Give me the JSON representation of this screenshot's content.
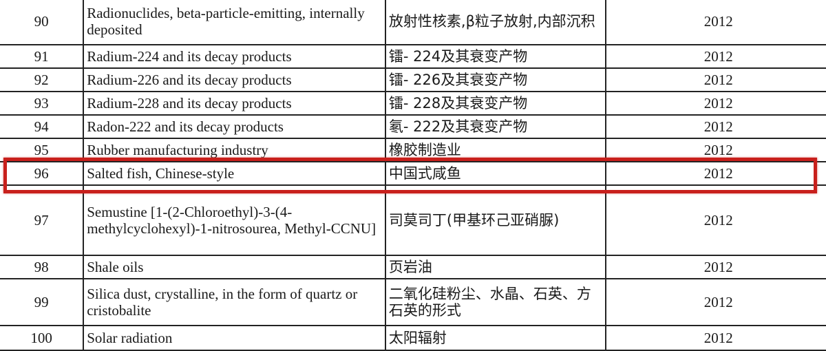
{
  "rows": [
    {
      "no": "90",
      "en": "Radionuclides, beta-particle-emitting, internally deposited",
      "zh": "放射性核素,β粒子放射,内部沉积",
      "year": "2012"
    },
    {
      "no": "91",
      "en": "Radium-224 and its decay products",
      "zh": "镭- 224及其衰变产物",
      "year": "2012"
    },
    {
      "no": "92",
      "en": "Radium-226 and its decay products",
      "zh": "镭- 226及其衰变产物",
      "year": "2012"
    },
    {
      "no": "93",
      "en": "Radium-228 and its decay products",
      "zh": "镭- 228及其衰变产物",
      "year": "2012"
    },
    {
      "no": "94",
      "en": "Radon-222 and its decay products",
      "zh": "氡- 222及其衰变产物",
      "year": "2012"
    },
    {
      "no": "95",
      "en": "Rubber manufacturing industry",
      "zh": "橡胶制造业",
      "year": "2012"
    },
    {
      "no": "96",
      "en": "Salted fish, Chinese-style",
      "zh": "中国式咸鱼",
      "year": "2012"
    },
    {
      "no": "97",
      "en": "Semustine [1-(2-Chloroethyl)-3-(4-methylcyclohexyl)-1-nitrosourea, Methyl-CCNU]",
      "zh": "司莫司丁(甲基环己亚硝脲)",
      "year": "2012"
    },
    {
      "no": "98",
      "en": "Shale oils",
      "zh": "页岩油",
      "year": "2012"
    },
    {
      "no": "99",
      "en": "Silica dust, crystalline, in the form of quartz or cristobalite",
      "zh": "二氧化硅粉尘、水晶、石英、方石英的形式",
      "year": "2012"
    },
    {
      "no": "100",
      "en": "Solar radiation",
      "zh": "太阳辐射",
      "year": "2012"
    }
  ],
  "highlight": {
    "row": "96",
    "color": "#c8201c"
  }
}
